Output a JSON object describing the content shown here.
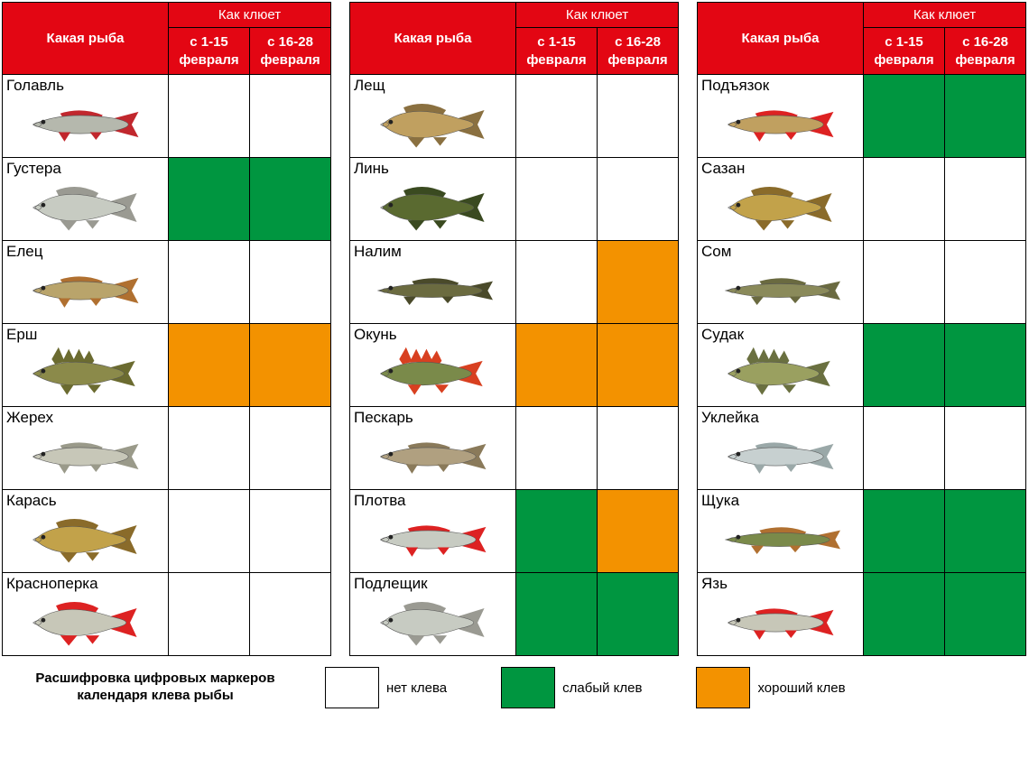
{
  "chart": {
    "type": "table",
    "title_fontsize": 17,
    "label_fontsize": 15,
    "border_color": "#000000",
    "header_bg": "#e30613",
    "header_text_color": "#ffffff",
    "colors": {
      "none": "#ffffff",
      "weak": "#009640",
      "good": "#f39200"
    },
    "header": {
      "col_fish": "Какая рыба",
      "col_bite": "Как клюет",
      "period1": "с 1-15 февраля",
      "period2": "с 16-28 февраля"
    },
    "tables": [
      {
        "rows": [
          {
            "name": "Голавль",
            "p1": "none",
            "p2": "none",
            "body": "#b5b8ad",
            "fin": "#c1272d",
            "shape": "slim"
          },
          {
            "name": "Густера",
            "p1": "weak",
            "p2": "weak",
            "body": "#c7cbc2",
            "fin": "#9a9a92",
            "shape": "deep"
          },
          {
            "name": "Елец",
            "p1": "none",
            "p2": "none",
            "body": "#b9a46b",
            "fin": "#b07030",
            "shape": "slim"
          },
          {
            "name": "Ерш",
            "p1": "good",
            "p2": "good",
            "body": "#8b8a4a",
            "fin": "#6b6b30",
            "shape": "perch"
          },
          {
            "name": "Жерех",
            "p1": "none",
            "p2": "none",
            "body": "#c7c7b8",
            "fin": "#9a9a8a",
            "shape": "slim"
          },
          {
            "name": "Карась",
            "p1": "none",
            "p2": "none",
            "body": "#c2a24a",
            "fin": "#8a6b2a",
            "shape": "deep"
          },
          {
            "name": "Красноперка",
            "p1": "none",
            "p2": "none",
            "body": "#c7c7b8",
            "fin": "#d22",
            "shape": "deep"
          }
        ]
      },
      {
        "rows": [
          {
            "name": "Лещ",
            "p1": "none",
            "p2": "none",
            "body": "#c0a060",
            "fin": "#8a7040",
            "shape": "deep"
          },
          {
            "name": "Линь",
            "p1": "none",
            "p2": "none",
            "body": "#5a6a30",
            "fin": "#3a4a20",
            "shape": "deep"
          },
          {
            "name": "Налим",
            "p1": "none",
            "p2": "good",
            "body": "#6b6b40",
            "fin": "#4a4a2a",
            "shape": "long"
          },
          {
            "name": "Окунь",
            "p1": "good",
            "p2": "good",
            "body": "#7a8a4a",
            "fin": "#d84020",
            "shape": "perch"
          },
          {
            "name": "Пескарь",
            "p1": "none",
            "p2": "none",
            "body": "#b0a080",
            "fin": "#8a7a5a",
            "shape": "slim"
          },
          {
            "name": "Плотва",
            "p1": "weak",
            "p2": "good",
            "body": "#c7cbc2",
            "fin": "#d22",
            "shape": "slim"
          },
          {
            "name": "Подлещик",
            "p1": "weak",
            "p2": "weak",
            "body": "#c7cbc2",
            "fin": "#9a9a92",
            "shape": "deep"
          }
        ]
      },
      {
        "rows": [
          {
            "name": "Подъязок",
            "p1": "weak",
            "p2": "weak",
            "body": "#c0a060",
            "fin": "#d22",
            "shape": "slim"
          },
          {
            "name": "Сазан",
            "p1": "none",
            "p2": "none",
            "body": "#c2a24a",
            "fin": "#8a6b2a",
            "shape": "deep"
          },
          {
            "name": "Сом",
            "p1": "none",
            "p2": "none",
            "body": "#8a8a5a",
            "fin": "#6a6a40",
            "shape": "long"
          },
          {
            "name": "Судак",
            "p1": "weak",
            "p2": "weak",
            "body": "#9aa060",
            "fin": "#6a7040",
            "shape": "perch"
          },
          {
            "name": "Уклейка",
            "p1": "none",
            "p2": "none",
            "body": "#c7d0d0",
            "fin": "#9aa8a8",
            "shape": "slim"
          },
          {
            "name": "Щука",
            "p1": "weak",
            "p2": "weak",
            "body": "#7a8a4a",
            "fin": "#b07030",
            "shape": "long"
          },
          {
            "name": "Язь",
            "p1": "weak",
            "p2": "weak",
            "body": "#c7c7b8",
            "fin": "#d22",
            "shape": "slim"
          }
        ]
      }
    ],
    "legend": {
      "title": "Расшифровка цифровых маркеров календаря клева рыбы",
      "items": [
        {
          "key": "none",
          "label": "нет клева"
        },
        {
          "key": "weak",
          "label": "слабый клев"
        },
        {
          "key": "good",
          "label": "хороший клев"
        }
      ]
    }
  }
}
